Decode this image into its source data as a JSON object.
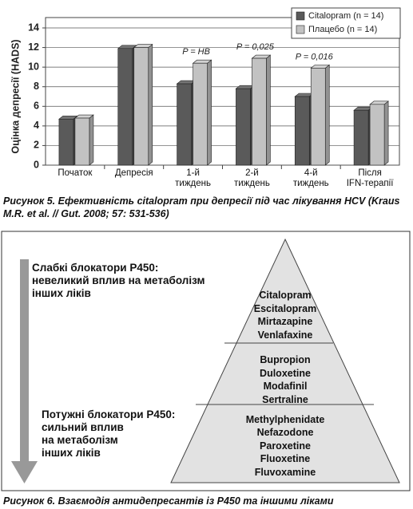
{
  "chart_data": {
    "type": "bar",
    "y_label": "Оцінка депресії (HADS)",
    "categories": [
      "Початок",
      "Депресія",
      "1-й\nтиждень",
      "2-й\nтиждень",
      "4-й\nтиждень",
      "Після\nIFN-терапії"
    ],
    "series": [
      {
        "name": "Citalopram (n = 14)",
        "color": "#5a5a5a",
        "values": [
          4.7,
          11.9,
          8.3,
          7.8,
          7.0,
          5.6
        ]
      },
      {
        "name": "Плацебо (n = 14)",
        "color": "#c2c2c2",
        "values": [
          4.8,
          12.0,
          10.4,
          10.9,
          9.9,
          6.2
        ]
      }
    ],
    "p_values": [
      null,
      null,
      "P = НВ",
      "P = 0,025",
      "P = 0,016",
      null
    ],
    "ylim": [
      0,
      14
    ],
    "yticks": [
      0,
      2,
      4,
      6,
      8,
      10,
      12,
      14
    ],
    "grid": true,
    "legend": "top-right"
  },
  "figure5_caption": "Рисунок 5. Ефективність citalopram при депресії під час лікування HCV (Kraus M.R. et al. // Gut. 2008; 57: 531-536)",
  "figure6": {
    "weak_text": "Слабкі блокатори P450:\nневеликий вплив на метаболізм\nінших ліків",
    "strong_text": "Потужні блокатори P450:\nсильний вплив\nна метаболізм\nінших ліків",
    "pyramid_levels": [
      [
        "Citalopram",
        "Escitalopram",
        "Mirtazapine",
        "Venlafaxine"
      ],
      [
        "Bupropion",
        "Duloxetine",
        "Modafinil",
        "Sertraline"
      ],
      [
        "Methylphenidate",
        "Nefazodone",
        "Paroxetine",
        "Fluoxetine",
        "Fluvoxamine"
      ]
    ]
  },
  "figure6_caption": "Рисунок 6. Взаємодія антидепресантів із P450 та іншими ліками"
}
